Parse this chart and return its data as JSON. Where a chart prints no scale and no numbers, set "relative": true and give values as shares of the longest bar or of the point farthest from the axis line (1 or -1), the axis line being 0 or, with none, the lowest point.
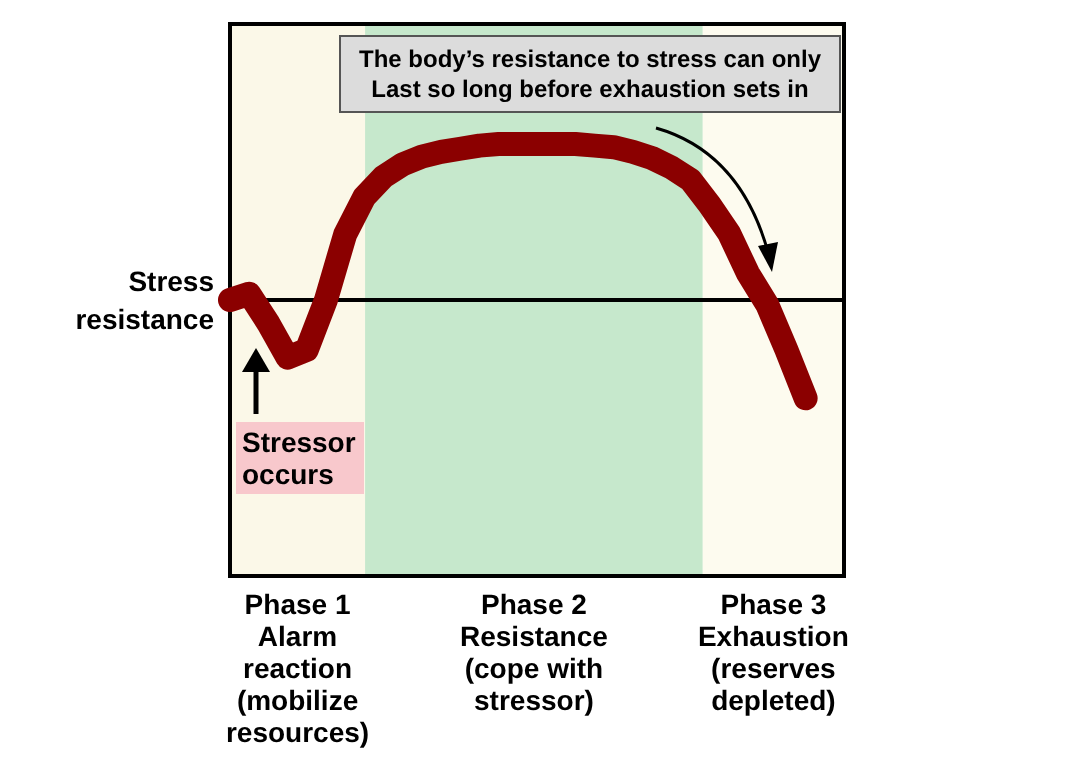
{
  "chart_data": {
    "type": "line",
    "relative": true,
    "grid": false,
    "line_style": "solid",
    "ylabel": "Stress\nresistance",
    "categories": [
      null,
      null,
      null,
      null,
      null,
      null,
      null,
      null,
      null,
      null,
      null,
      null,
      null,
      null,
      null,
      null,
      null,
      null,
      null,
      null,
      null,
      null,
      null,
      null,
      null,
      null,
      null,
      null,
      null,
      null,
      null,
      null,
      null
    ],
    "series": [
      {
        "color": "#8b0000",
        "values": [
          0,
          0.04,
          -0.15,
          -0.37,
          -0.32,
          0,
          0.42,
          0.66,
          0.79,
          0.87,
          0.92,
          0.95,
          0.97,
          0.99,
          1,
          1,
          1,
          1,
          1,
          0.99,
          0.98,
          0.95,
          0.91,
          0.85,
          0.77,
          0.61,
          0.43,
          0.17,
          -0.03,
          -0.32,
          -0.63,
          null,
          null
        ]
      }
    ],
    "annotations": [
      "The body’s resistance to stress can only\nLast so long before exhaustion sets in",
      "Stressor\noccurs",
      "Phase 1\nAlarm\nreaction\n(mobilize\nresources)",
      "Phase 2\nResistance\n(cope with\nstressor)",
      "Phase 3\nExhaustion\n(reserves\ndepleted)"
    ]
  }
}
